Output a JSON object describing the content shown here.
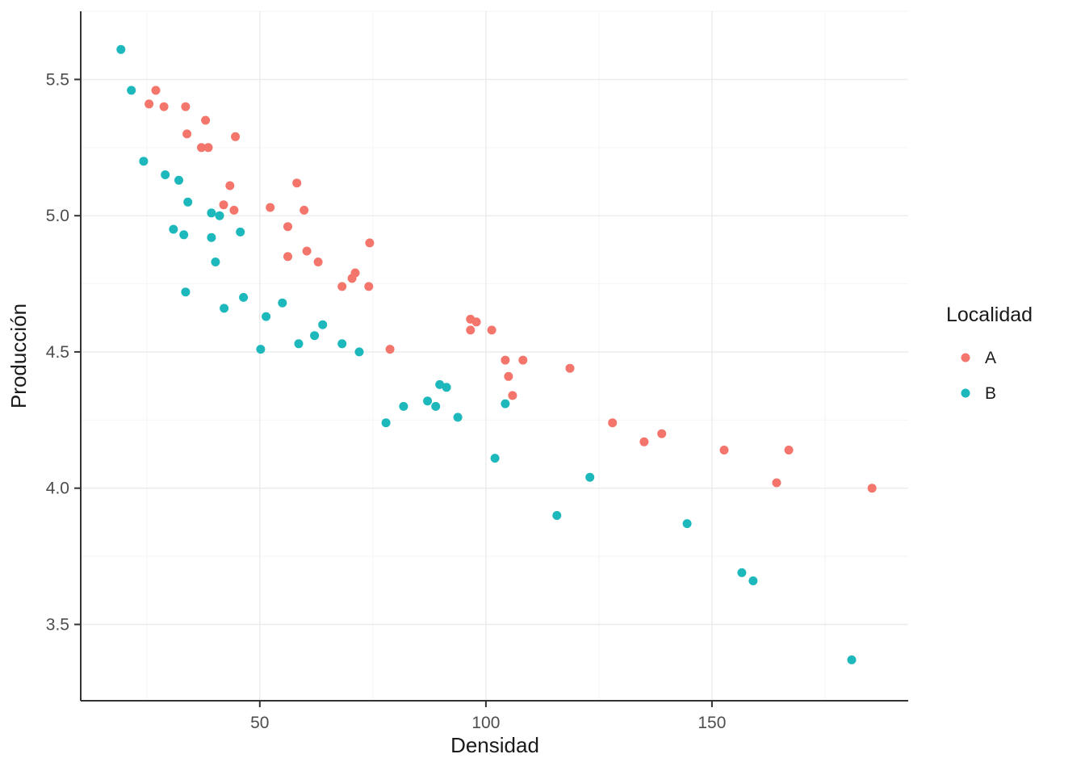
{
  "chart_data": {
    "type": "scatter",
    "title": "",
    "xlabel": "Densidad",
    "ylabel": "Producción",
    "xlim": [
      10.4,
      193.4
    ],
    "ylim": [
      3.22,
      5.75
    ],
    "grid": true,
    "x_ticks": [
      {
        "label": "50",
        "value": 50
      },
      {
        "label": "100",
        "value": 100
      },
      {
        "label": "150",
        "value": 150
      }
    ],
    "y_ticks": [
      {
        "label": "3.5",
        "value": 3.5
      },
      {
        "label": "4.0",
        "value": 4.0
      },
      {
        "label": "4.5",
        "value": 4.5
      },
      {
        "label": "5.0",
        "value": 5.0
      },
      {
        "label": "5.5",
        "value": 5.5
      }
    ],
    "x_minor_ticks": [
      25,
      75,
      125,
      175
    ],
    "y_minor_ticks": [
      3.75,
      4.25,
      4.75,
      5.25,
      5.75
    ],
    "legend": {
      "title": "Localidad",
      "position": "right",
      "items": [
        {
          "label": "A",
          "color": "#F3756C"
        },
        {
          "label": "B",
          "color": "#1DB8BC"
        }
      ]
    },
    "series": [
      {
        "name": "A",
        "color": "#F3756C",
        "points": [
          [
            27.0,
            5.46
          ],
          [
            25.5,
            5.41
          ],
          [
            28.8,
            5.4
          ],
          [
            33.6,
            5.4
          ],
          [
            33.9,
            5.3
          ],
          [
            38.0,
            5.35
          ],
          [
            37.1,
            5.25
          ],
          [
            38.6,
            5.25
          ],
          [
            44.6,
            5.29
          ],
          [
            43.4,
            5.11
          ],
          [
            42.0,
            5.04
          ],
          [
            44.3,
            5.02
          ],
          [
            52.3,
            5.03
          ],
          [
            58.2,
            5.12
          ],
          [
            56.2,
            4.96
          ],
          [
            59.8,
            5.02
          ],
          [
            56.2,
            4.85
          ],
          [
            60.4,
            4.87
          ],
          [
            62.9,
            4.83
          ],
          [
            68.2,
            4.74
          ],
          [
            70.4,
            4.77
          ],
          [
            71.1,
            4.79
          ],
          [
            74.3,
            4.9
          ],
          [
            74.1,
            4.74
          ],
          [
            78.8,
            4.51
          ],
          [
            96.6,
            4.62
          ],
          [
            97.9,
            4.61
          ],
          [
            96.6,
            4.58
          ],
          [
            101.3,
            4.58
          ],
          [
            104.3,
            4.47
          ],
          [
            108.2,
            4.47
          ],
          [
            105.0,
            4.41
          ],
          [
            105.9,
            4.34
          ],
          [
            118.6,
            4.44
          ],
          [
            128.0,
            4.24
          ],
          [
            135.0,
            4.17
          ],
          [
            138.9,
            4.2
          ],
          [
            152.7,
            4.14
          ],
          [
            164.3,
            4.02
          ],
          [
            167.0,
            4.14
          ],
          [
            185.4,
            4.0
          ]
        ]
      },
      {
        "name": "B",
        "color": "#1DB8BC",
        "points": [
          [
            19.3,
            5.61
          ],
          [
            21.6,
            5.46
          ],
          [
            24.3,
            5.2
          ],
          [
            29.1,
            5.15
          ],
          [
            32.1,
            5.13
          ],
          [
            34.1,
            5.05
          ],
          [
            30.9,
            4.95
          ],
          [
            33.2,
            4.93
          ],
          [
            39.3,
            5.01
          ],
          [
            41.1,
            5.0
          ],
          [
            39.3,
            4.92
          ],
          [
            40.2,
            4.83
          ],
          [
            33.6,
            4.72
          ],
          [
            42.1,
            4.66
          ],
          [
            45.7,
            4.94
          ],
          [
            46.4,
            4.7
          ],
          [
            51.4,
            4.63
          ],
          [
            50.2,
            4.51
          ],
          [
            55.0,
            4.68
          ],
          [
            58.6,
            4.53
          ],
          [
            62.1,
            4.56
          ],
          [
            63.9,
            4.6
          ],
          [
            68.2,
            4.53
          ],
          [
            72.0,
            4.5
          ],
          [
            77.9,
            4.24
          ],
          [
            81.8,
            4.3
          ],
          [
            87.1,
            4.32
          ],
          [
            88.9,
            4.3
          ],
          [
            89.8,
            4.38
          ],
          [
            91.3,
            4.37
          ],
          [
            93.8,
            4.26
          ],
          [
            102.0,
            4.11
          ],
          [
            104.3,
            4.31
          ],
          [
            115.7,
            3.9
          ],
          [
            123.0,
            4.04
          ],
          [
            144.5,
            3.87
          ],
          [
            156.6,
            3.69
          ],
          [
            159.1,
            3.66
          ],
          [
            180.9,
            3.37
          ]
        ]
      }
    ]
  },
  "style": {
    "background": "#FFFFFF",
    "grid_major": "#EBEBEB",
    "grid_minor": "#F6F6F6",
    "axis_line": "#333333",
    "tick_color": "#333333",
    "point_radius": 5.5
  }
}
